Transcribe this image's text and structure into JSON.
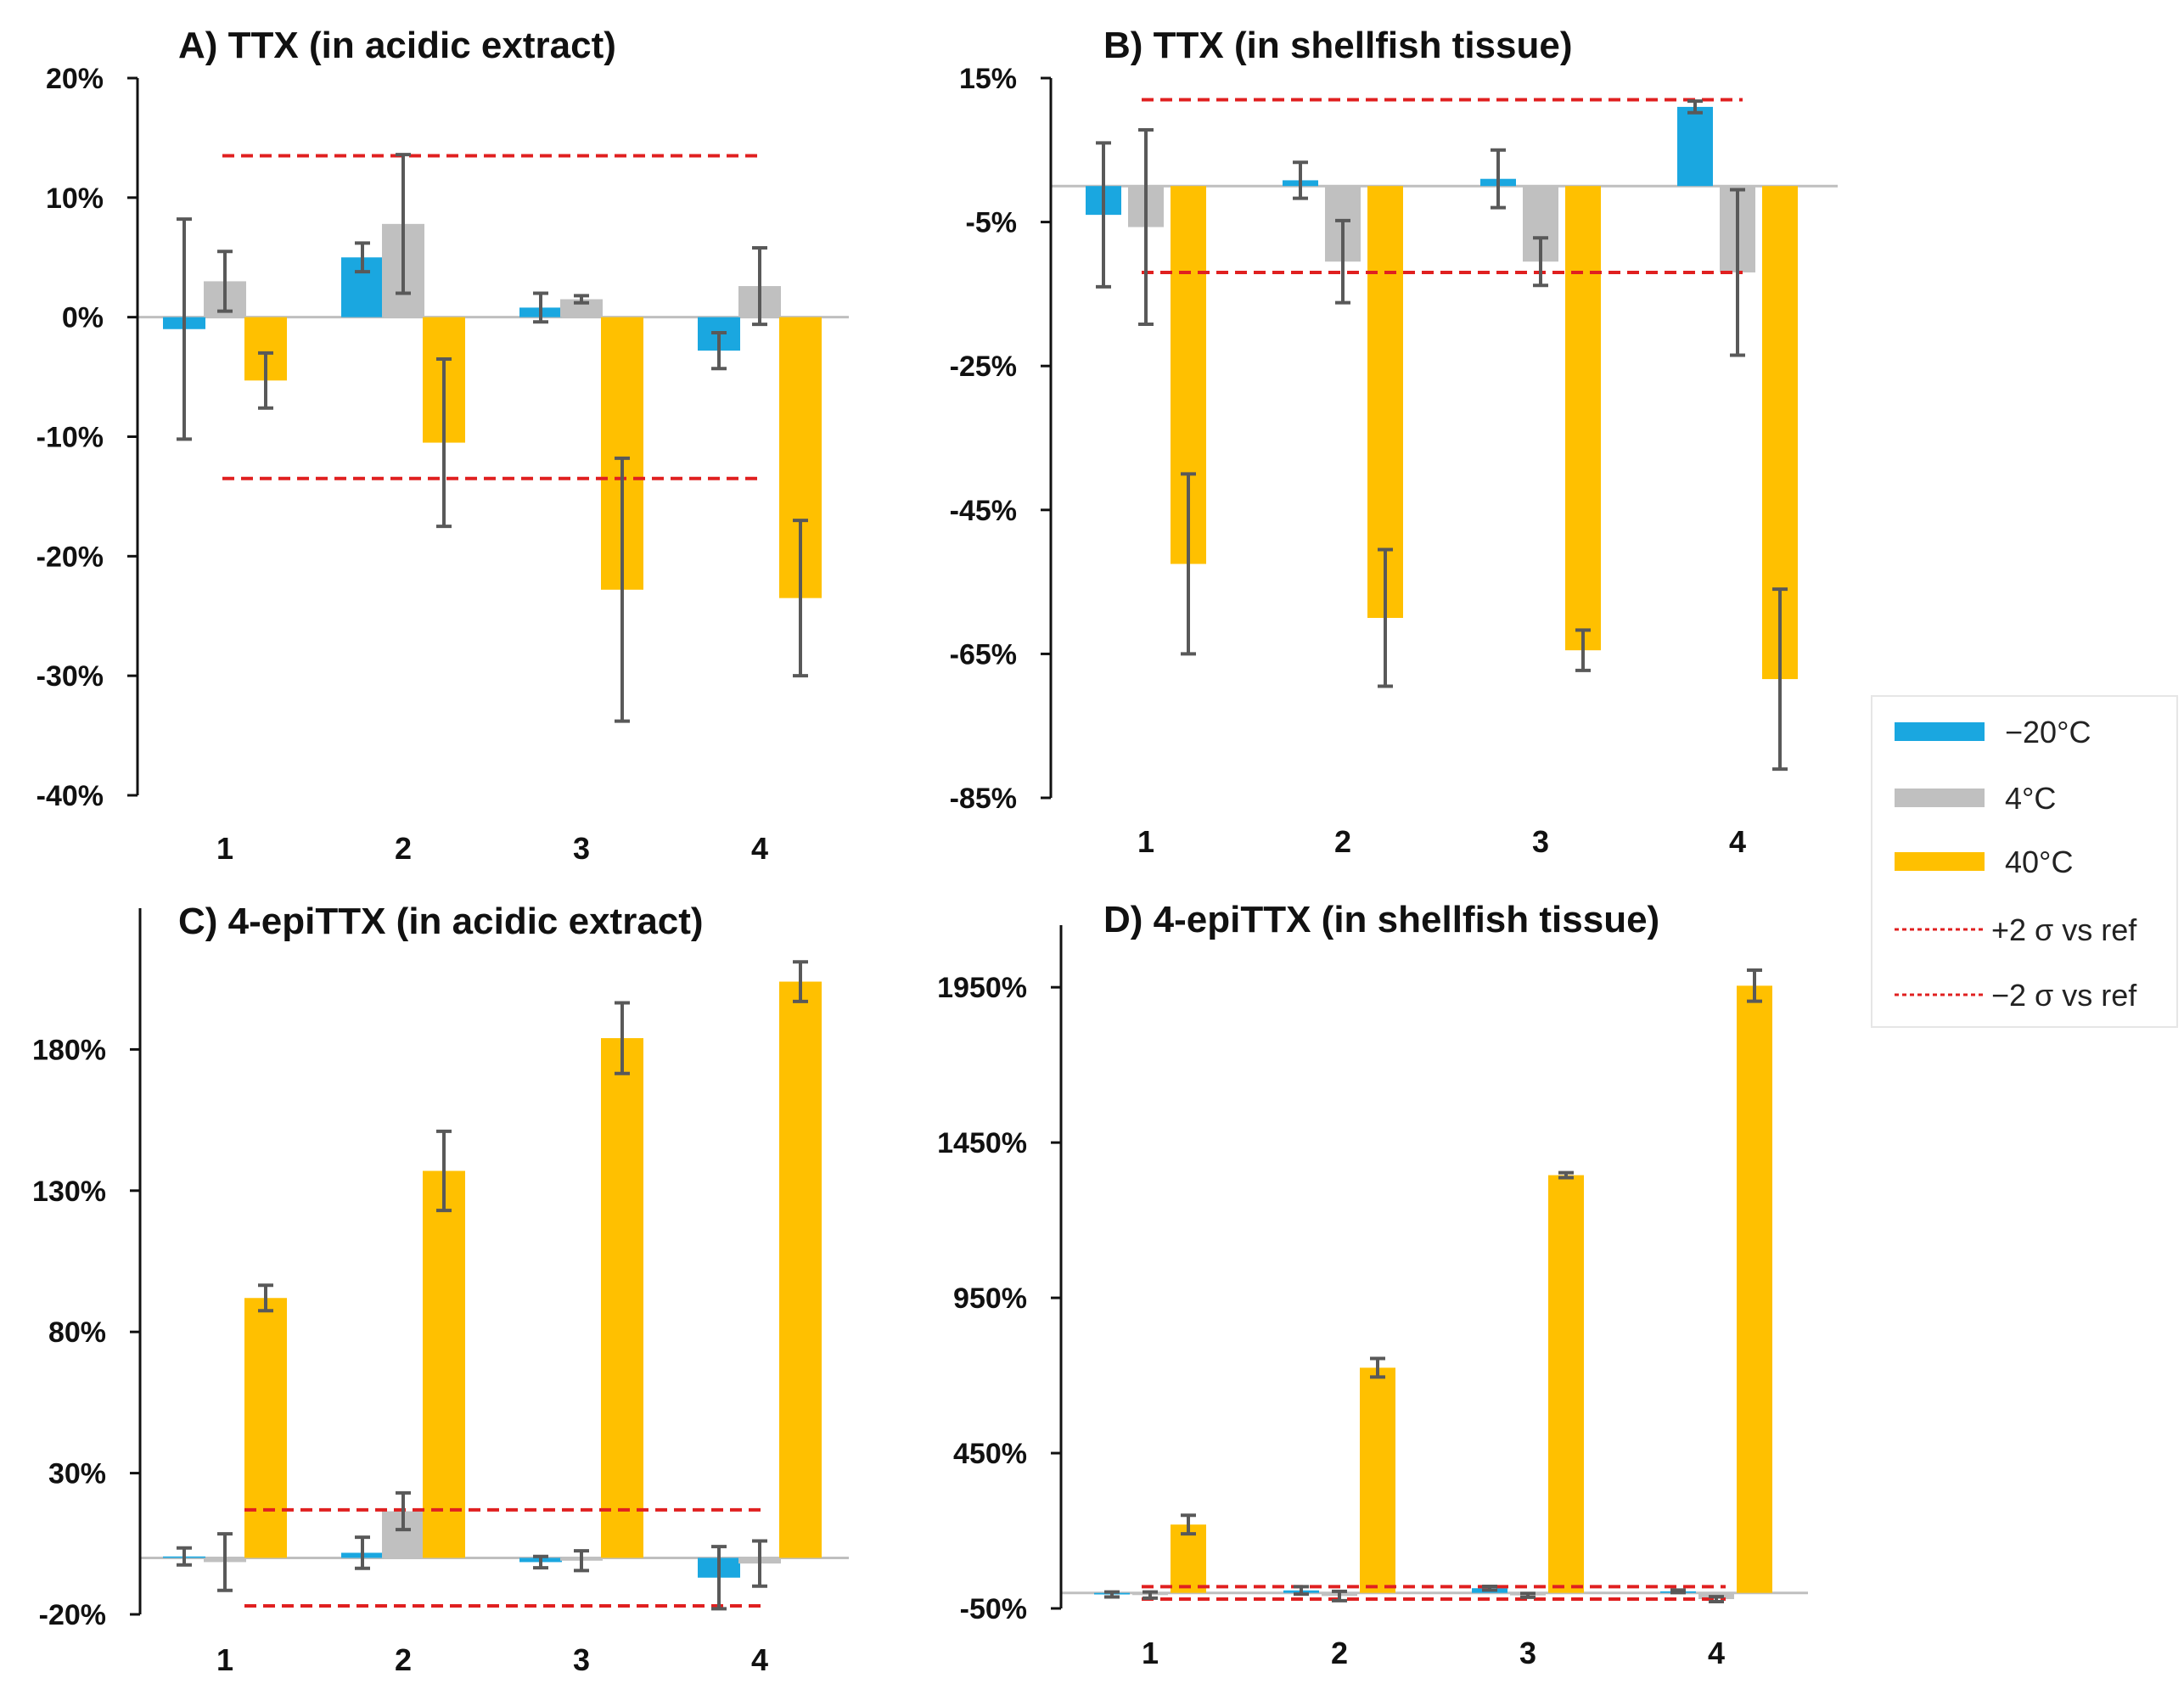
{
  "legend": {
    "items": [
      {
        "key": "m20",
        "label": "−20°C",
        "color": "#1aa7e0",
        "kind": "bar"
      },
      {
        "key": "p4",
        "label": "4°C",
        "color": "#c0c0c0",
        "kind": "bar"
      },
      {
        "key": "p40",
        "label": "40°C",
        "color": "#ffc000",
        "kind": "bar"
      },
      {
        "key": "up",
        "label": "+2 σ vs ref",
        "color": "#e02020",
        "kind": "line"
      },
      {
        "key": "dn",
        "label": "−2 σ vs ref",
        "color": "#e02020",
        "kind": "line"
      }
    ]
  },
  "chart_data": [
    {
      "type": "bar",
      "title": "A) TTX (in acidic extract)",
      "categories": [
        "1",
        "2",
        "3",
        "4"
      ],
      "ylim": [
        -40,
        20
      ],
      "yticks": [
        20,
        10,
        0,
        -10,
        -20,
        -30,
        -40
      ],
      "ytick_labels": [
        "20%",
        "10%",
        "0%",
        "-10%",
        "-20%",
        "-30%",
        "-40%"
      ],
      "series": [
        {
          "name": "−20°C",
          "color": "#1aa7e0",
          "values": [
            -1,
            5,
            0.8,
            -2.8
          ],
          "errors": [
            9.2,
            1.2,
            1.2,
            1.5
          ]
        },
        {
          "name": "4°C",
          "color": "#c0c0c0",
          "values": [
            3,
            7.8,
            1.5,
            2.6
          ],
          "errors": [
            2.5,
            5.8,
            0.3,
            3.2
          ]
        },
        {
          "name": "40°C",
          "color": "#ffc000",
          "values": [
            -5.3,
            -10.5,
            -22.8,
            -23.5
          ],
          "errors": [
            2.3,
            7,
            11,
            6.5
          ]
        }
      ],
      "thresholds": {
        "upper": 13.5,
        "lower": -13.5
      }
    },
    {
      "type": "bar",
      "title": "B) TTX (in shellfish tissue)",
      "categories": [
        "1",
        "2",
        "3",
        "4"
      ],
      "ylim": [
        -85,
        15
      ],
      "yticks": [
        15,
        -5,
        -25,
        -45,
        -65,
        -85
      ],
      "ytick_labels": [
        "15%",
        "-5%",
        "-25%",
        "-45%",
        "-65%",
        "-85%"
      ],
      "series": [
        {
          "name": "−20°C",
          "color": "#1aa7e0",
          "values": [
            -4,
            0.8,
            1,
            11
          ],
          "errors": [
            10,
            2.5,
            4,
            0.8
          ]
        },
        {
          "name": "4°C",
          "color": "#c0c0c0",
          "values": [
            -5.7,
            -10.5,
            -10.5,
            -12
          ],
          "errors": [
            13.5,
            5.7,
            3.3,
            11.5
          ]
        },
        {
          "name": "40°C",
          "color": "#ffc000",
          "values": [
            -52.5,
            -60,
            -64.5,
            -68.5
          ],
          "errors": [
            12.5,
            9.5,
            2.8,
            12.5
          ]
        }
      ],
      "thresholds": {
        "upper": 12,
        "lower": -12
      }
    },
    {
      "type": "bar",
      "title": "C) 4-epiTTX (in acidic extract)",
      "categories": [
        "1",
        "2",
        "3",
        "4"
      ],
      "ylim": [
        -20,
        230
      ],
      "yticks": [
        180,
        130,
        80,
        30,
        -20
      ],
      "ytick_labels": [
        "180%",
        "130%",
        "80%",
        "30%",
        "-20%"
      ],
      "series": [
        {
          "name": "−20°C",
          "color": "#1aa7e0",
          "values": [
            0.5,
            1.8,
            -1.5,
            -7
          ],
          "errors": [
            3,
            5.5,
            2,
            11
          ]
        },
        {
          "name": "4°C",
          "color": "#c0c0c0",
          "values": [
            -1.5,
            16.5,
            -1,
            -2
          ],
          "errors": [
            10,
            6.5,
            3.5,
            8
          ]
        },
        {
          "name": "40°C",
          "color": "#ffc000",
          "values": [
            92,
            137,
            184,
            204
          ],
          "errors": [
            4.5,
            14,
            12.5,
            7
          ]
        }
      ],
      "thresholds": {
        "upper": 17,
        "lower": -17
      }
    },
    {
      "type": "bar",
      "title": "D) 4-epiTTX (in shellfish tissue)",
      "categories": [
        "1",
        "2",
        "3",
        "4"
      ],
      "ylim": [
        -50,
        2150
      ],
      "yticks": [
        1950,
        1450,
        950,
        450,
        -50
      ],
      "ytick_labels": [
        "1950%",
        "1450%",
        "950%",
        "450%",
        "-50%"
      ],
      "series": [
        {
          "name": "−20°C",
          "color": "#1aa7e0",
          "values": [
            -5,
            8,
            15,
            5
          ],
          "errors": [
            8,
            12,
            6,
            4
          ]
        },
        {
          "name": "4°C",
          "color": "#c0c0c0",
          "values": [
            -7,
            -10,
            -8,
            -20
          ],
          "errors": [
            10,
            15,
            6,
            8
          ]
        },
        {
          "name": "40°C",
          "color": "#ffc000",
          "values": [
            220,
            725,
            1345,
            1955
          ],
          "errors": [
            30,
            30,
            8,
            50
          ]
        }
      ],
      "thresholds": {
        "upper": 20,
        "lower": -20
      }
    }
  ]
}
